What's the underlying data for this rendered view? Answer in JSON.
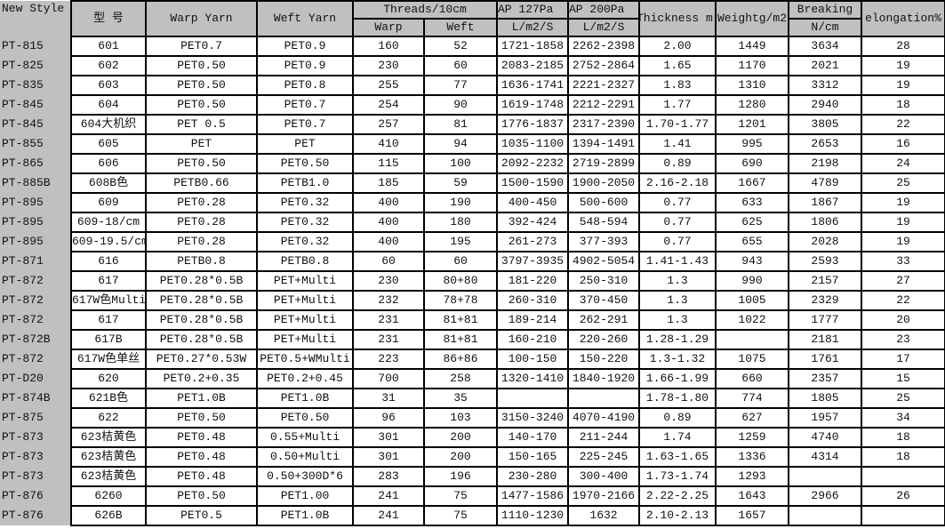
{
  "header": {
    "new_style": "New Style",
    "model": "型 号",
    "warp_yarn": "Warp Yarn",
    "weft_yarn": "Weft Yarn",
    "threads": "Threads/10cm",
    "threads_warp": "Warp",
    "threads_weft": "Weft",
    "ap127": "AP 127Pa",
    "ap127_unit": "L/m2/S",
    "ap200": "AP 200Pa",
    "ap200_unit": "L/m2/S",
    "thickness": "Thickness m",
    "weight": "Weightg/m2",
    "breaking": "Breaking",
    "breaking_unit": "N/cm",
    "elongation": "elongation%"
  },
  "colors": {
    "header_bg": "#c0c0c0",
    "border": "#000000"
  },
  "rows": [
    [
      "PT-815",
      "601",
      "PET0.7",
      "PET0.9",
      "160",
      "52",
      "1721-1858",
      "2262-2398",
      "2.00",
      "1449",
      "3634",
      "28"
    ],
    [
      "PT-825",
      "602",
      "PET0.50",
      "PET0.9",
      "230",
      "60",
      "2083-2185",
      "2752-2864",
      "1.65",
      "1170",
      "2021",
      "19"
    ],
    [
      "PT-835",
      "603",
      "PET0.50",
      "PET0.8",
      "255",
      "77",
      "1636-1741",
      "2221-2327",
      "1.83",
      "1310",
      "3312",
      "19"
    ],
    [
      "PT-845",
      "604",
      "PET0.50",
      "PET0.7",
      "254",
      "90",
      "1619-1748",
      "2212-2291",
      "1.77",
      "1280",
      "2940",
      "18"
    ],
    [
      "PT-845",
      "604大机织",
      "PET 0.5",
      "PET0.7",
      "257",
      "81",
      "1776-1837",
      "2317-2390",
      "1.70-1.77",
      "1201",
      "3805",
      "22"
    ],
    [
      "PT-855",
      "605",
      "PET",
      "PET",
      "410",
      "94",
      "1035-1100",
      "1394-1491",
      "1.41",
      "995",
      "2653",
      "16"
    ],
    [
      "PT-865",
      "606",
      "PET0.50",
      "PET0.50",
      "115",
      "100",
      "2092-2232",
      "2719-2899",
      "0.89",
      "690",
      "2198",
      "24"
    ],
    [
      "PT-885B",
      "608B色",
      "PETB0.66",
      "PETB1.0",
      "185",
      "59",
      "1500-1590",
      "1900-2050",
      "2.16-2.18",
      "1667",
      "4789",
      "25"
    ],
    [
      "PT-895",
      "609",
      "PET0.28",
      "PET0.32",
      "400",
      "190",
      "400-450",
      "500-600",
      "0.77",
      "633",
      "1867",
      "19"
    ],
    [
      "PT-895",
      "609-18/cm",
      "PET0.28",
      "PET0.32",
      "400",
      "180",
      "392-424",
      "548-594",
      "0.77",
      "625",
      "1806",
      "19"
    ],
    [
      "PT-895",
      "609-19.5/cm",
      "PET0.28",
      "PET0.32",
      "400",
      "195",
      "261-273",
      "377-393",
      "0.77",
      "655",
      "2028",
      "19"
    ],
    [
      "PT-871",
      "616",
      "PETB0.8",
      "PETB0.8",
      "60",
      "60",
      "3797-3935",
      "4902-5054",
      "1.41-1.43",
      "943",
      "2593",
      "33"
    ],
    [
      "PT-872",
      "617",
      "PET0.28*0.5B",
      "PET+Multi",
      "230",
      "80+80",
      "181-220",
      "250-310",
      "1.3",
      "990",
      "2157",
      "27"
    ],
    [
      "PT-872",
      "617W色Multi",
      "PET0.28*0.5B",
      "PET+Multi",
      "232",
      "78+78",
      "260-310",
      "370-450",
      "1.3",
      "1005",
      "2329",
      "22"
    ],
    [
      "PT-872",
      "617",
      "PET0.28*0.5B",
      "PET+Multi",
      "231",
      "81+81",
      "189-214",
      "262-291",
      "1.3",
      "1022",
      "1777",
      "20"
    ],
    [
      "PT-872B",
      "617B",
      "PET0.28*0.5B",
      "PET+Multi",
      "231",
      "81+81",
      "160-210",
      "220-260",
      "1.28-1.29",
      "",
      "2181",
      "23"
    ],
    [
      "PT-872",
      "617W色单丝",
      "PET0.27*0.53W",
      "PET0.5+WMulti",
      "223",
      "86+86",
      "100-150",
      "150-220",
      "1.3-1.32",
      "1075",
      "1761",
      "17"
    ],
    [
      "PT-D20",
      "620",
      "PET0.2+0.35",
      "PET0.2+0.45",
      "700",
      "258",
      "1320-1410",
      "1840-1920",
      "1.66-1.99",
      "660",
      "2357",
      "15"
    ],
    [
      "PT-874B",
      "621B色",
      "PET1.0B",
      "PET1.0B",
      "31",
      "35",
      "",
      "",
      "1.78-1.80",
      "774",
      "1805",
      "25"
    ],
    [
      "PT-875",
      "622",
      "PET0.50",
      "PET0.50",
      "96",
      "103",
      "3150-3240",
      "4070-4190",
      "0.89",
      "627",
      "1957",
      "34"
    ],
    [
      "PT-873",
      "623桔黄色",
      "PET0.48",
      "0.55+Multi",
      "301",
      "200",
      "140-170",
      "211-244",
      "1.74",
      "1259",
      "4740",
      "18"
    ],
    [
      "PT-873",
      "623桔黄色",
      "PET0.48",
      "0.50+Multi",
      "301",
      "200",
      "150-165",
      "225-245",
      "1.63-1.65",
      "1336",
      "4314",
      "18"
    ],
    [
      "PT-873",
      "623桔黄色",
      "PET0.48",
      "0.50+300D*6",
      "283",
      "196",
      "230-280",
      "300-400",
      "1.73-1.74",
      "1293",
      "",
      ""
    ],
    [
      "PT-876",
      "6260",
      "PET0.50",
      "PET1.00",
      "241",
      "75",
      "1477-1586",
      "1970-2166",
      "2.22-2.25",
      "1643",
      "2966",
      "26"
    ],
    [
      "PT-876",
      "626B",
      "PET0.5",
      "PET1.0B",
      "241",
      "75",
      "1110-1230",
      "1632",
      "2.10-2.13",
      "1657",
      "",
      ""
    ]
  ]
}
